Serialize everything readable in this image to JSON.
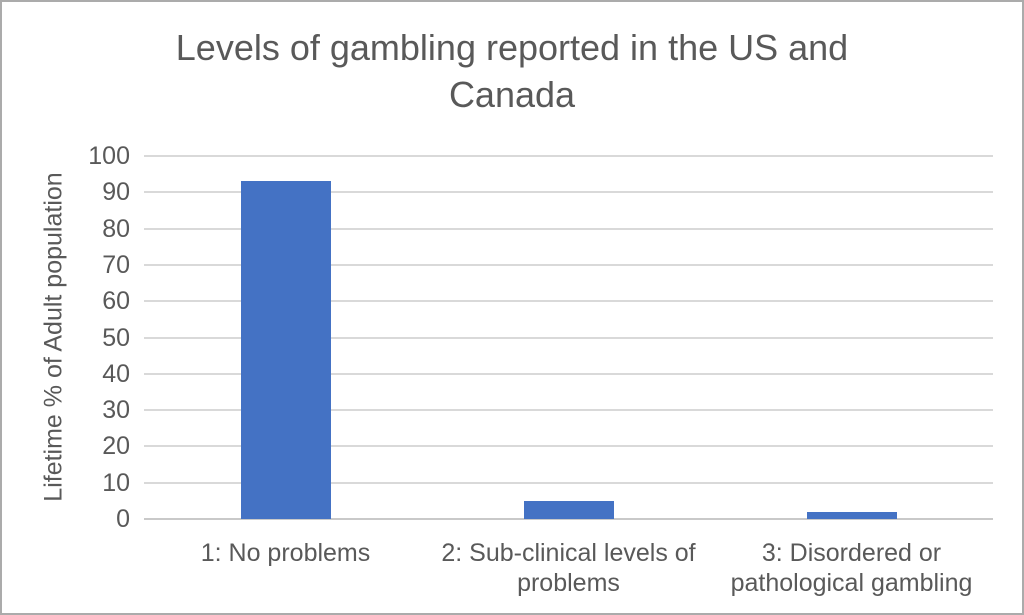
{
  "chart_data": {
    "type": "bar",
    "title": "Levels of gambling reported in the US and Canada",
    "categories": [
      "1: No problems",
      "2: Sub-clinical levels of problems",
      "3: Disordered or pathological gambling"
    ],
    "values": [
      93,
      5,
      2
    ],
    "xlabel": "",
    "ylabel": "Lifetime % of Adult population",
    "ylim": [
      0,
      100
    ],
    "yticks": [
      0,
      10,
      20,
      30,
      40,
      50,
      60,
      70,
      80,
      90,
      100
    ],
    "grid": true,
    "legend": false,
    "colors": {
      "bar": "#4472C4",
      "gridline": "#d9d9d9",
      "axis_line": "#c9c9c9",
      "text": "#595959",
      "background": "#ffffff",
      "frame_border": "#ababab"
    }
  }
}
